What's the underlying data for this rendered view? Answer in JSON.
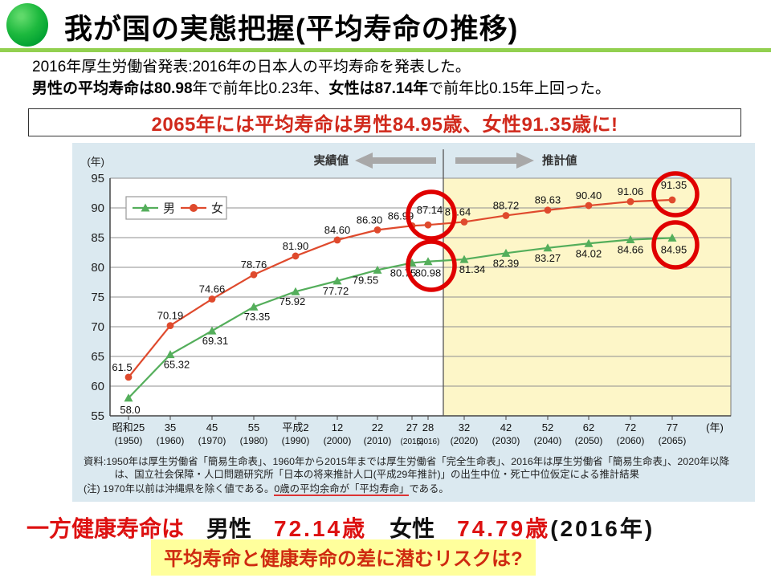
{
  "header": {
    "title": "我が国の実態把握(平均寿命の推移)"
  },
  "intro": {
    "line1": "2016年厚生労働省発表:2016年の日本人の平均寿命を発表した。",
    "line2_parts": [
      {
        "text": "男性の平均寿命は80.98",
        "bold": true
      },
      {
        "text": "年で前年比0.23年、",
        "bold": false
      },
      {
        "text": "女性は87.14年",
        "bold": true
      },
      {
        "text": "で前年比0.15年上回った。",
        "bold": false
      }
    ]
  },
  "highlight_box": {
    "text": "2065年には平均寿命は男性84.95歳、女性91.35歳に!"
  },
  "chart_data": {
    "type": "line",
    "y_axis_unit": "(年)",
    "x_axis_unit": "(年)",
    "ylim": [
      55,
      95
    ],
    "ytick_step": 5,
    "grid": true,
    "legend": {
      "position": "top-left",
      "items": [
        "男",
        "女"
      ]
    },
    "categories_era": [
      "昭和25",
      "35",
      "45",
      "55",
      "平成2",
      "12",
      "22",
      "27",
      "28",
      "32",
      "42",
      "52",
      "62",
      "72",
      "77"
    ],
    "categories_year": [
      "(1950)",
      "(1960)",
      "(1970)",
      "(1980)",
      "(1990)",
      "(2000)",
      "(2010)",
      "(2015)",
      "(2016)",
      "(2020)",
      "(2030)",
      "(2040)",
      "(2050)",
      "(2060)",
      "(2065)"
    ],
    "series": [
      {
        "name": "男",
        "color": "#54ae5b",
        "marker": "triangle",
        "values": [
          58.0,
          65.32,
          69.31,
          73.35,
          75.92,
          77.72,
          79.55,
          80.75,
          80.98,
          81.34,
          82.39,
          83.27,
          84.02,
          84.66,
          84.95
        ],
        "labels": [
          "58.0",
          "65.32",
          "69.31",
          "73.35",
          "75.92",
          "77.72",
          "79.55",
          "80.75",
          "80.98",
          "81.34",
          "82.39",
          "83.27",
          "84.02",
          "84.66",
          "84.95"
        ]
      },
      {
        "name": "女",
        "color": "#df4a2d",
        "marker": "circle",
        "values": [
          61.5,
          70.19,
          74.66,
          78.76,
          81.9,
          84.6,
          86.3,
          86.99,
          87.14,
          87.64,
          88.72,
          89.63,
          90.4,
          91.06,
          91.35
        ],
        "labels": [
          "61.5",
          "70.19",
          "74.66",
          "78.76",
          "81.90",
          "84.60",
          "86.30",
          "86.99",
          "87.14",
          "87.64",
          "88.72",
          "89.63",
          "90.40",
          "91.06",
          "91.35"
        ]
      }
    ],
    "annotations": {
      "actual_label": "実績値",
      "projection_label": "推計値",
      "divider_after_index": 8,
      "projection_bg": "#fdf6c8",
      "circle_color": "#e00000",
      "circled": [
        {
          "series": "女",
          "index": 8
        },
        {
          "series": "男",
          "index": 8
        },
        {
          "series": "女",
          "index": 14
        },
        {
          "series": "男",
          "index": 14
        }
      ]
    }
  },
  "notes": {
    "source": "資料:1950年は厚生労働省「簡易生命表」、1960年から2015年までは厚生労働省「完全生命表」、2016年は厚生労働省「簡易生命表」、2020年以降は、国立社会保障・人口問題研究所「日本の将来推計人口(平成29年推計)」の出生中位・死亡中位仮定による推計結果",
    "note_prefix": "(注) 1970年以前は沖縄県を除く値である。",
    "note_underlined": "0歳の平均余命が「平均寿命」",
    "note_suffix": "である。"
  },
  "conclusion": {
    "segments": [
      {
        "text": "一方健康寿命は",
        "red": true
      },
      {
        "text": "　男性　",
        "red": false
      },
      {
        "text": "72.14歳",
        "red": true,
        "wide": true
      },
      {
        "text": "　女性　",
        "red": false
      },
      {
        "text": "74.79歳",
        "red": true,
        "wide": true
      },
      {
        "text": "(2016年)",
        "red": false,
        "wide": true
      }
    ]
  },
  "question": {
    "text": "平均寿命と健康寿命の差に潜むリスクは?"
  }
}
